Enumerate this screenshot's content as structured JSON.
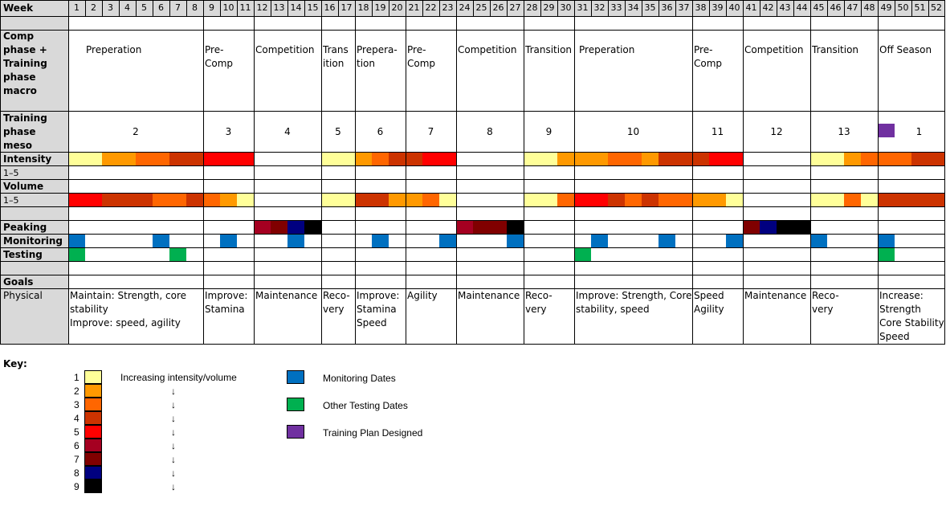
{
  "row_labels": {
    "week": "Week",
    "macro": [
      "Comp",
      "phase +",
      "Training",
      "phase",
      "macro"
    ],
    "meso": [
      "Training",
      "phase",
      "meso"
    ],
    "intensity": "Intensity",
    "intensity_range": "1–5",
    "volume": "Volume",
    "volume_range": "1–5",
    "peaking": "Peaking",
    "monitoring": "Monitoring",
    "testing": "Testing",
    "goals": "Goals",
    "physical": "Physical"
  },
  "weeks": [
    "1",
    "2",
    "3",
    "4",
    "5",
    "6",
    "7",
    "8",
    "9",
    "10",
    "11",
    "12",
    "13",
    "14",
    "15",
    "16",
    "17",
    "18",
    "19",
    "20",
    "21",
    "22",
    "23",
    "24",
    "25",
    "26",
    "27",
    "28",
    "29",
    "30",
    "31",
    "32",
    "33",
    "34",
    "35",
    "36",
    "37",
    "38",
    "39",
    "40",
    "41",
    "42",
    "43",
    "44",
    "45",
    "46",
    "47",
    "48",
    "49",
    "50",
    "51",
    "52"
  ],
  "blocks": [
    {
      "start": 1,
      "end": 8,
      "macro": "Preperation",
      "meso": "2",
      "goal": [
        "Maintain: Strength, core",
        "stability",
        "Improve: speed, agility"
      ]
    },
    {
      "start": 9,
      "end": 11,
      "macro": "Pre-\nComp",
      "meso": "3",
      "goal": [
        "Improve:",
        "Stamina"
      ]
    },
    {
      "start": 12,
      "end": 15,
      "macro": "Competition",
      "meso": "4",
      "goal": [
        "Maintenance"
      ]
    },
    {
      "start": 16,
      "end": 17,
      "macro": "Trans\nition",
      "meso": "5",
      "goal": [
        "Reco-",
        "very"
      ]
    },
    {
      "start": 18,
      "end": 20,
      "macro": "Prepera-\ntion",
      "meso": "6",
      "goal": [
        "Improve:",
        "Stamina",
        "Speed"
      ]
    },
    {
      "start": 21,
      "end": 23,
      "macro": "Pre-\nComp",
      "meso": "7",
      "goal": [
        "Agility"
      ]
    },
    {
      "start": 24,
      "end": 27,
      "macro": "Competition",
      "meso": "8",
      "goal": [
        "Maintenance"
      ]
    },
    {
      "start": 28,
      "end": 30,
      "macro": "Transition",
      "meso": "9",
      "goal": [
        "Reco-",
        "very"
      ]
    },
    {
      "start": 31,
      "end": 37,
      "macro": "Preperation",
      "meso": "10",
      "goal": [
        "Improve: Strength, Core",
        "stability, speed"
      ]
    },
    {
      "start": 38,
      "end": 40,
      "macro": "Pre-\nComp",
      "meso": "11",
      "goal": [
        "Speed",
        "Agility"
      ]
    },
    {
      "start": 41,
      "end": 44,
      "macro": "Competition",
      "meso": "12",
      "goal": [
        "Maintenance"
      ]
    },
    {
      "start": 45,
      "end": 48,
      "macro": "Transition",
      "meso": "13",
      "goal": [
        "Reco-",
        "very"
      ]
    },
    {
      "start": 49,
      "end": 52,
      "macro": "Off Season",
      "meso": "1",
      "goal": [
        "Increase:",
        "Strength",
        "Core Stability",
        "Speed"
      ]
    }
  ],
  "colors": {
    "1": "#ffff99",
    "2": "#ff9900",
    "3": "#ff6600",
    "4": "#cc3300",
    "5": "#ff0000",
    "6": "#a50021",
    "7": "#800000",
    "8": "#000080",
    "9": "#000000",
    "monitoring": "#0070c0",
    "testing": "#00b050",
    "designed": "#7030a0"
  },
  "intensity": [
    1,
    1,
    2,
    2,
    3,
    3,
    4,
    4,
    5,
    5,
    5,
    0,
    0,
    0,
    0,
    1,
    1,
    2,
    3,
    4,
    4,
    5,
    5,
    0,
    0,
    0,
    0,
    1,
    1,
    2,
    2,
    2,
    3,
    3,
    2,
    4,
    4,
    4,
    5,
    5,
    0,
    0,
    0,
    0,
    1,
    1,
    2,
    3,
    3,
    3,
    4,
    4
  ],
  "volume": [
    5,
    5,
    4,
    4,
    4,
    3,
    3,
    4,
    3,
    2,
    1,
    0,
    0,
    0,
    0,
    1,
    1,
    4,
    4,
    2,
    2,
    3,
    1,
    0,
    0,
    0,
    0,
    1,
    1,
    3,
    5,
    5,
    4,
    3,
    4,
    3,
    3,
    2,
    2,
    1,
    0,
    0,
    0,
    0,
    1,
    1,
    3,
    1,
    4,
    4,
    4,
    4
  ],
  "peaking": [
    0,
    0,
    0,
    0,
    0,
    0,
    0,
    0,
    0,
    0,
    0,
    6,
    7,
    8,
    9,
    0,
    0,
    0,
    0,
    0,
    0,
    0,
    0,
    6,
    7,
    7,
    9,
    0,
    0,
    0,
    0,
    0,
    0,
    0,
    0,
    0,
    0,
    0,
    0,
    0,
    7,
    8,
    9,
    9,
    0,
    0,
    0,
    0,
    0,
    0,
    0,
    0
  ],
  "monitoring_weeks": [
    1,
    6,
    10,
    14,
    19,
    23,
    27,
    32,
    36,
    40,
    45,
    49
  ],
  "testing_weeks": [
    1,
    7,
    31,
    49
  ],
  "designed_week": 49,
  "key": {
    "title": "Key:",
    "levels": [
      "1",
      "2",
      "3",
      "4",
      "5",
      "6",
      "7",
      "8",
      "9"
    ],
    "scale_label": "Increasing intensity/volume",
    "arrow": "↓",
    "monitoring_label": "Monitoring Dates",
    "testing_label": "Other Testing Dates",
    "designed_label": "Training Plan Designed"
  }
}
